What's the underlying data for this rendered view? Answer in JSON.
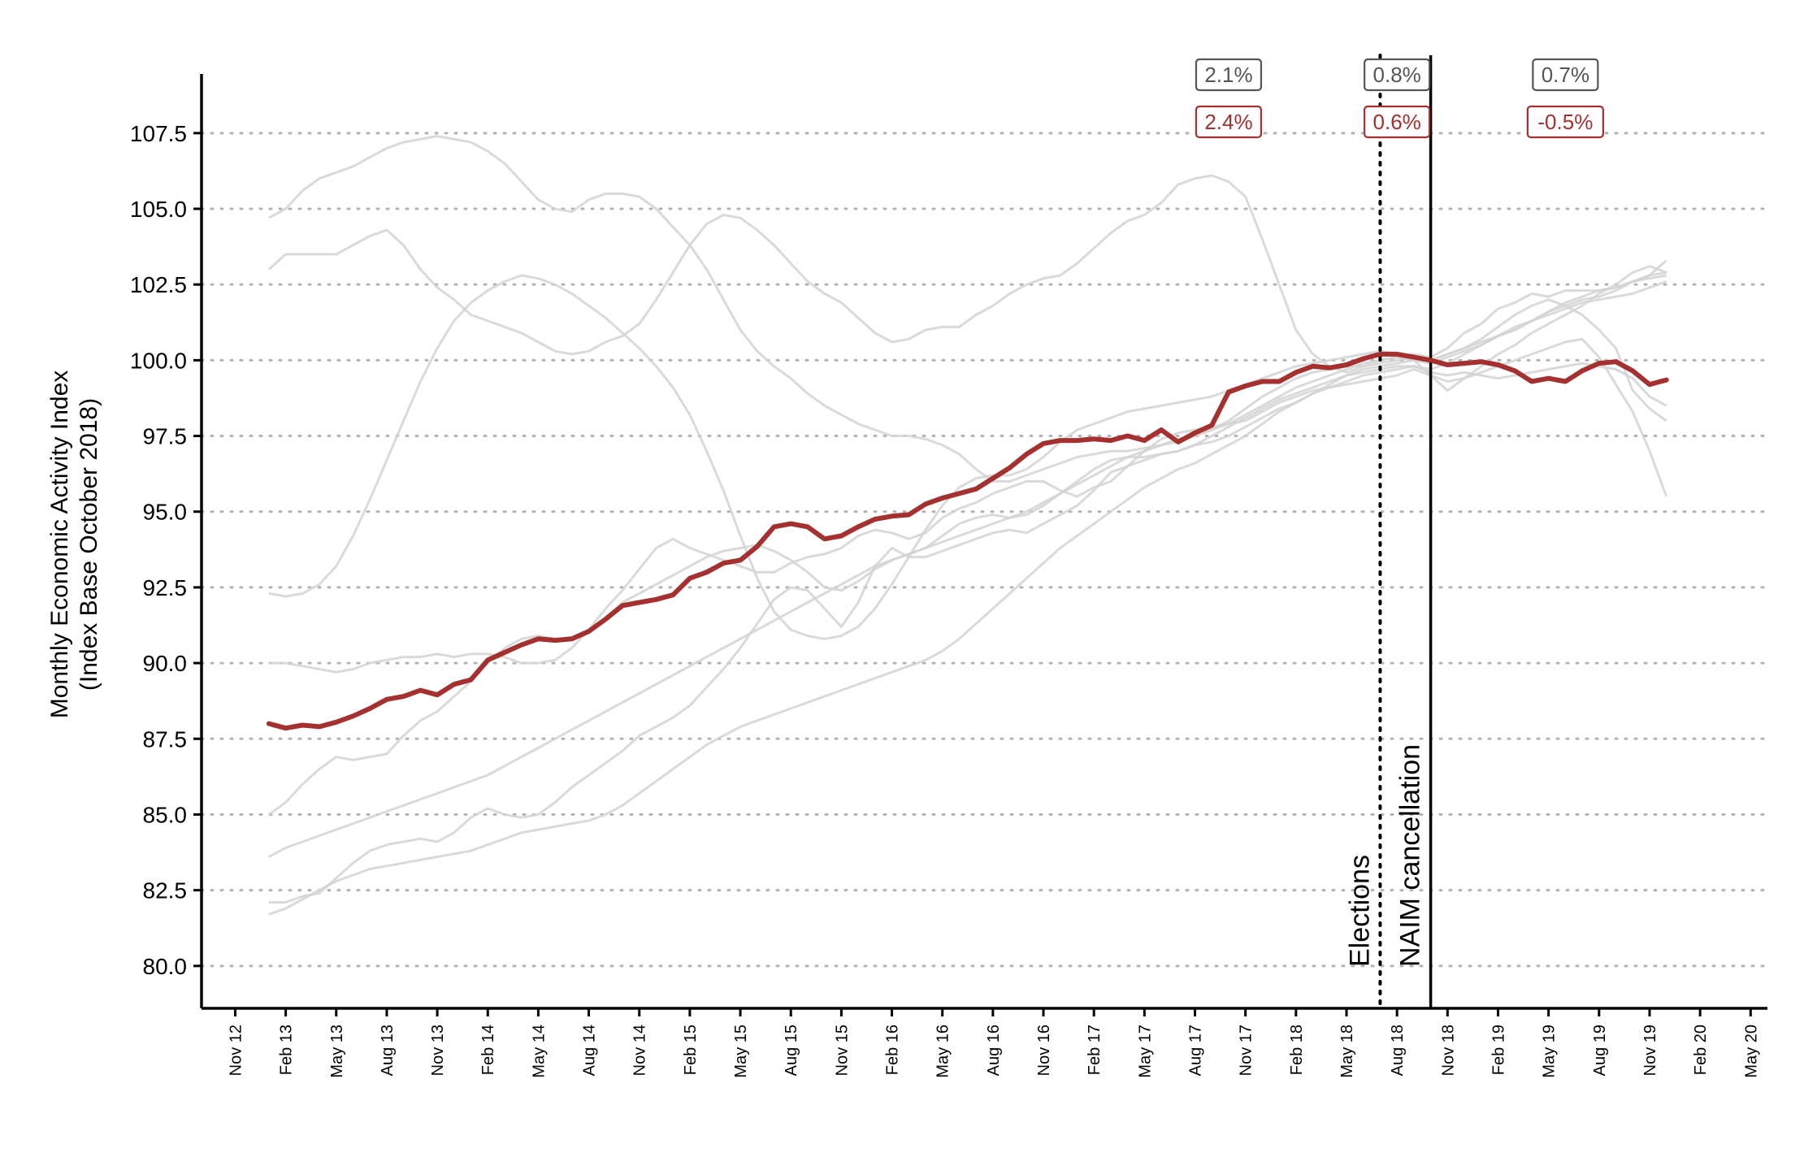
{
  "chart_data": {
    "type": "line",
    "title": "",
    "xlabel": "",
    "ylabel_lines": [
      "Monthly Economic Activity Index",
      "(Index Base October 2018)"
    ],
    "ylim": [
      78.6,
      109.4
    ],
    "y_ticks": [
      "80.0",
      "82.5",
      "85.0",
      "87.5",
      "90.0",
      "92.5",
      "95.0",
      "97.5",
      "100.0",
      "102.5",
      "105.0",
      "107.5"
    ],
    "x_range": [
      "2012-09",
      "2020-06"
    ],
    "x_ticks": [
      "Nov 12",
      "Feb 13",
      "May 13",
      "Aug 13",
      "Nov 13",
      "Feb 14",
      "May 14",
      "Aug 14",
      "Nov 14",
      "Feb 15",
      "May 15",
      "Aug 15",
      "Nov 15",
      "Feb 16",
      "May 16",
      "Aug 16",
      "Nov 16",
      "Feb 17",
      "May 17",
      "Aug 17",
      "Nov 17",
      "Feb 18",
      "May 18",
      "Aug 18",
      "Nov 18",
      "Feb 19",
      "May 19",
      "Aug 19",
      "Nov 19",
      "Feb 20",
      "May 20"
    ],
    "grid": {
      "horizontal": true,
      "style": "dotted"
    },
    "colors": {
      "highlight": "#a4302f",
      "background_series": "#d3d3d3",
      "box_gray": "#555555",
      "box_red": "#a4302f"
    },
    "events": [
      {
        "label": "Elections",
        "date": "2018-07",
        "style": "dotted"
      },
      {
        "label": "NAIM cancellation",
        "date": "2018-10",
        "style": "solid"
      }
    ],
    "annotations": [
      {
        "date": "2017-10",
        "gray": "2.1%",
        "red": "2.4%"
      },
      {
        "date": "2018-08",
        "gray": "0.8%",
        "red": "0.6%"
      },
      {
        "date": "2019-06",
        "gray": "0.7%",
        "red": "-0.5%"
      }
    ],
    "highlight_series": {
      "start": "2013-01",
      "values": [
        88.0,
        87.85,
        87.95,
        87.9,
        88.05,
        88.25,
        88.5,
        88.8,
        88.9,
        89.1,
        88.95,
        89.3,
        89.45,
        90.1,
        90.35,
        90.6,
        90.8,
        90.75,
        90.8,
        91.05,
        91.45,
        91.9,
        92.0,
        92.1,
        92.25,
        92.8,
        93.0,
        93.3,
        93.4,
        93.85,
        94.5,
        94.6,
        94.5,
        94.1,
        94.2,
        94.5,
        94.75,
        94.85,
        94.9,
        95.25,
        95.45,
        95.6,
        95.75,
        96.1,
        96.45,
        96.9,
        97.25,
        97.35,
        97.35,
        97.4,
        97.35,
        97.5,
        97.35,
        97.7,
        97.3,
        97.6,
        97.85,
        98.95,
        99.15,
        99.3,
        99.3,
        99.6,
        99.8,
        99.75,
        99.85,
        100.05,
        100.2,
        100.2,
        100.1,
        100.0,
        99.85,
        99.9,
        99.95,
        99.85,
        99.65,
        99.3,
        99.4,
        99.3,
        99.65,
        99.9,
        99.95,
        99.65,
        99.2,
        99.35
      ]
    },
    "background_series": [
      {
        "start": "2013-01",
        "values": [
          92.3,
          92.2,
          92.3,
          92.6,
          93.2,
          94.2,
          95.4,
          96.7,
          98.0,
          99.3,
          100.4,
          101.3,
          101.9,
          102.3,
          102.6,
          102.8,
          102.7,
          102.5,
          102.2,
          101.8,
          101.4,
          100.9,
          100.4,
          99.8,
          99.1,
          98.2,
          97.0,
          95.7,
          94.2,
          92.8,
          91.7,
          91.1,
          90.9,
          90.8,
          90.9,
          91.2,
          91.8,
          92.6,
          93.5,
          94.4,
          95.2,
          95.8,
          96.1,
          96.2,
          96.2,
          96.4,
          96.8,
          97.3,
          97.7,
          97.9,
          98.1,
          98.3,
          98.4,
          98.5,
          98.6,
          98.7,
          98.8,
          99.0,
          99.2,
          99.4,
          99.6,
          99.8,
          99.9,
          100.0,
          100.1,
          100.2,
          100.3,
          100.2,
          100.1,
          100.0,
          100.2,
          100.4,
          100.6,
          100.8,
          101.0,
          101.3,
          101.6,
          101.9,
          102.1,
          102.3,
          102.4,
          102.6,
          102.7,
          102.8
        ]
      },
      {
        "start": "2013-01",
        "values": [
          103.0,
          103.5,
          103.5,
          103.5,
          103.5,
          103.8,
          104.1,
          104.3,
          103.8,
          103.0,
          102.4,
          102.0,
          101.5,
          101.3,
          101.1,
          100.9,
          100.6,
          100.3,
          100.2,
          100.3,
          100.6,
          100.8,
          101.2,
          102.0,
          102.9,
          103.8,
          104.5,
          104.8,
          104.7,
          104.3,
          103.8,
          103.2,
          102.6,
          102.2,
          101.9,
          101.4,
          100.9,
          100.6,
          100.7,
          101.0,
          101.1,
          101.1,
          101.5,
          101.8,
          102.2,
          102.5,
          102.7,
          102.8,
          103.2,
          103.7,
          104.2,
          104.6,
          104.8,
          105.2,
          105.8,
          106.0,
          106.1,
          105.9,
          105.4,
          104.0,
          102.5,
          101.0,
          100.2,
          99.8,
          99.6,
          99.8,
          100.0,
          100.1,
          100.2,
          100.1,
          100.4,
          100.9,
          101.2,
          101.7,
          101.9,
          102.2,
          102.1,
          102.3,
          102.3,
          102.3,
          102.4,
          102.6,
          102.8,
          103.3
        ]
      },
      {
        "start": "2013-01",
        "values": [
          104.7,
          105.0,
          105.6,
          106.0,
          106.2,
          106.4,
          106.7,
          107.0,
          107.2,
          107.3,
          107.4,
          107.3,
          107.2,
          106.9,
          106.5,
          105.9,
          105.3,
          105.0,
          104.9,
          105.3,
          105.5,
          105.5,
          105.4,
          105.0,
          104.4,
          103.8,
          103.0,
          102.0,
          101.0,
          100.3,
          99.8,
          99.4,
          98.9,
          98.5,
          98.2,
          97.9,
          97.7,
          97.5,
          97.5,
          97.4,
          97.2,
          96.9,
          96.4,
          96.0,
          96.0,
          96.2,
          96.4,
          96.6,
          96.8,
          96.9,
          97.0,
          97.0,
          97.1,
          97.2,
          97.3,
          97.5,
          97.7,
          98.0,
          98.4,
          98.8,
          99.1,
          99.4,
          99.6,
          99.7,
          99.8,
          99.8,
          99.9,
          100.0,
          100.1,
          100.0,
          100.2,
          100.4,
          100.7,
          101.1,
          101.5,
          101.8,
          102.0,
          101.8,
          101.5,
          101.0,
          100.4,
          99.0,
          98.4,
          98.0
        ]
      },
      {
        "start": "2013-01",
        "values": [
          90.0,
          90.0,
          89.9,
          89.8,
          89.7,
          89.8,
          90.0,
          90.1,
          90.2,
          90.2,
          90.3,
          90.2,
          90.3,
          90.3,
          90.2,
          90.0,
          90.0,
          90.1,
          90.5,
          91.1,
          91.8,
          92.4,
          93.1,
          93.8,
          94.1,
          93.8,
          93.6,
          93.4,
          93.2,
          93.0,
          93.0,
          93.3,
          93.5,
          93.6,
          93.8,
          94.2,
          94.4,
          94.3,
          94.1,
          94.3,
          94.8,
          95.1,
          95.3,
          95.6,
          95.8,
          96.0,
          96.0,
          95.7,
          95.5,
          95.8,
          96.0,
          96.5,
          97.0,
          97.4,
          97.6,
          97.7,
          97.8,
          97.9,
          98.0,
          98.3,
          98.6,
          98.8,
          99.0,
          99.1,
          99.3,
          99.5,
          99.6,
          99.7,
          99.8,
          99.7,
          99.9,
          100.2,
          100.5,
          100.8,
          101.1,
          101.3,
          101.6,
          101.8,
          102.0,
          102.1,
          102.3,
          102.6,
          102.8,
          102.9
        ]
      },
      {
        "start": "2013-01",
        "values": [
          85.0,
          85.4,
          86.0,
          86.5,
          86.9,
          86.8,
          86.9,
          87.0,
          87.6,
          88.1,
          88.4,
          88.9,
          89.4,
          90.0,
          90.5,
          90.8,
          90.9,
          90.8,
          90.8,
          91.1,
          91.5,
          92.0,
          92.3,
          92.6,
          92.9,
          93.2,
          93.5,
          93.7,
          93.8,
          93.9,
          93.7,
          93.4,
          93.0,
          92.5,
          92.4,
          92.7,
          93.1,
          93.4,
          93.6,
          93.8,
          94.2,
          94.6,
          94.8,
          94.9,
          94.8,
          94.9,
          95.2,
          95.6,
          96.0,
          96.4,
          96.7,
          96.8,
          96.8,
          96.9,
          97.0,
          97.2,
          97.5,
          97.8,
          98.1,
          98.4,
          98.7,
          98.9,
          99.1,
          99.3,
          99.5,
          99.6,
          99.7,
          99.8,
          99.8,
          99.6,
          99.5,
          99.6,
          99.5,
          99.4,
          99.5,
          99.6,
          99.7,
          99.8,
          99.9,
          99.8,
          99.7,
          99.4,
          98.8,
          98.5
        ]
      },
      {
        "start": "2013-01",
        "values": [
          82.1,
          82.1,
          82.3,
          82.4,
          82.9,
          83.4,
          83.8,
          84.0,
          84.1,
          84.2,
          84.1,
          84.4,
          84.9,
          85.2,
          85.0,
          84.9,
          85.0,
          85.4,
          85.9,
          86.3,
          86.7,
          87.1,
          87.6,
          87.9,
          88.2,
          88.6,
          89.2,
          89.8,
          90.5,
          91.3,
          92.1,
          92.5,
          92.4,
          91.8,
          91.2,
          92.0,
          93.2,
          93.8,
          93.5,
          93.5,
          93.7,
          93.9,
          94.1,
          94.3,
          94.4,
          94.3,
          94.6,
          94.9,
          95.2,
          95.7,
          96.3,
          96.5,
          96.7,
          96.9,
          97.0,
          97.2,
          97.3,
          97.5,
          97.8,
          98.1,
          98.4,
          98.6,
          98.9,
          99.1,
          99.2,
          99.3,
          99.4,
          99.5,
          99.7,
          99.5,
          99.3,
          99.4,
          99.6,
          99.8,
          100.0,
          100.2,
          100.4,
          100.6,
          100.7,
          100.1,
          99.2,
          98.3,
          97.0,
          95.5
        ]
      },
      {
        "start": "2013-01",
        "values": [
          83.6,
          83.9,
          84.1,
          84.3,
          84.5,
          84.7,
          84.9,
          85.1,
          85.3,
          85.5,
          85.7,
          85.9,
          86.1,
          86.3,
          86.6,
          86.9,
          87.2,
          87.5,
          87.8,
          88.1,
          88.4,
          88.7,
          89.0,
          89.3,
          89.6,
          89.9,
          90.2,
          90.5,
          90.8,
          91.1,
          91.4,
          91.7,
          92.0,
          92.3,
          92.6,
          92.9,
          93.2,
          93.4,
          93.6,
          93.8,
          94.0,
          94.2,
          94.4,
          94.6,
          94.8,
          95.0,
          95.3,
          95.6,
          95.9,
          96.2,
          96.5,
          96.8,
          97.0,
          97.2,
          97.4,
          97.5,
          97.7,
          97.9,
          98.2,
          98.5,
          98.8,
          99.1,
          99.3,
          99.5,
          99.7,
          99.9,
          100.0,
          100.1,
          100.0,
          99.9,
          100.1,
          100.3,
          100.5,
          100.8,
          101.0,
          101.3,
          101.5,
          101.7,
          101.9,
          102.0,
          102.1,
          102.2,
          102.4,
          102.6
        ]
      },
      {
        "start": "2013-01",
        "values": [
          81.7,
          81.9,
          82.2,
          82.5,
          82.8,
          83.0,
          83.2,
          83.3,
          83.4,
          83.5,
          83.6,
          83.7,
          83.8,
          84.0,
          84.2,
          84.4,
          84.5,
          84.6,
          84.7,
          84.8,
          85.0,
          85.3,
          85.7,
          86.1,
          86.5,
          86.9,
          87.3,
          87.6,
          87.9,
          88.1,
          88.3,
          88.5,
          88.7,
          88.9,
          89.1,
          89.3,
          89.5,
          89.7,
          89.9,
          90.1,
          90.4,
          90.8,
          91.3,
          91.8,
          92.3,
          92.8,
          93.3,
          93.8,
          94.2,
          94.6,
          95.0,
          95.4,
          95.8,
          96.1,
          96.4,
          96.6,
          96.9,
          97.2,
          97.5,
          97.9,
          98.3,
          98.6,
          98.9,
          99.2,
          99.5,
          99.7,
          99.8,
          99.9,
          100.0,
          99.5,
          99.0,
          99.4,
          99.8,
          100.2,
          100.5,
          100.9,
          101.2,
          101.5,
          101.8,
          102.2,
          102.5,
          102.9,
          103.1,
          102.9
        ]
      }
    ]
  }
}
